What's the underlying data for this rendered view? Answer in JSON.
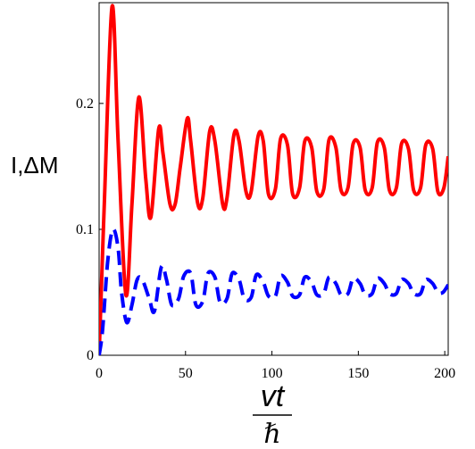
{
  "chart_data": {
    "type": "line",
    "title": "",
    "ylabel": "I,ΔM",
    "xlabel_numerator": "vt",
    "xlabel_denominator": "ℏ",
    "xlim": [
      0,
      202
    ],
    "ylim": [
      0,
      0.28
    ],
    "x_ticks": [
      0,
      50,
      100,
      150,
      200
    ],
    "x_tick_labels": [
      "0",
      "50",
      "100",
      "150",
      "200"
    ],
    "y_ticks": [
      0,
      0.1,
      0.2
    ],
    "y_tick_labels": [
      "0",
      "0.1",
      "0.2"
    ],
    "grid": false,
    "legend": "none",
    "series": [
      {
        "style": "solid",
        "color": "#ff0000",
        "x": [
          0,
          3,
          7.5,
          11,
          15.5,
          19,
          23,
          27,
          30,
          34.5,
          37,
          41,
          44,
          47,
          51,
          53,
          57,
          60,
          64,
          67,
          71.5,
          74,
          78,
          81,
          85,
          88,
          92,
          95,
          98,
          102,
          105,
          109,
          112,
          116,
          119,
          123,
          126,
          130,
          133,
          137,
          140,
          144,
          147,
          151,
          154,
          158,
          161,
          165,
          168,
          172,
          175,
          179,
          182,
          186,
          189,
          193,
          196,
          199.5,
          202
        ],
        "y": [
          0,
          0.12,
          0.277,
          0.17,
          0.048,
          0.12,
          0.205,
          0.14,
          0.11,
          0.18,
          0.16,
          0.12,
          0.12,
          0.15,
          0.188,
          0.17,
          0.121,
          0.125,
          0.178,
          0.17,
          0.12,
          0.125,
          0.175,
          0.17,
          0.13,
          0.13,
          0.174,
          0.17,
          0.128,
          0.132,
          0.172,
          0.167,
          0.128,
          0.133,
          0.17,
          0.165,
          0.13,
          0.132,
          0.171,
          0.165,
          0.131,
          0.133,
          0.168,
          0.165,
          0.131,
          0.133,
          0.169,
          0.165,
          0.131,
          0.133,
          0.168,
          0.164,
          0.131,
          0.133,
          0.167,
          0.164,
          0.13,
          0.133,
          0.158
        ]
      },
      {
        "style": "dashed",
        "color": "#0000ff",
        "x": [
          0,
          2,
          5,
          8,
          11,
          13,
          16,
          19,
          22,
          25,
          29,
          32,
          36,
          39,
          42,
          46,
          49,
          53,
          56,
          60,
          63,
          67,
          70,
          74,
          77,
          81,
          84,
          88,
          91,
          95,
          98,
          102,
          105,
          109,
          112,
          116,
          119,
          123,
          126,
          130,
          133,
          137,
          140,
          144,
          147,
          151,
          154,
          158,
          161,
          165,
          168,
          172,
          175,
          179,
          182,
          186,
          189,
          193,
          196,
          199,
          202
        ],
        "y": [
          0,
          0.02,
          0.075,
          0.1,
          0.085,
          0.05,
          0.026,
          0.04,
          0.06,
          0.06,
          0.045,
          0.035,
          0.07,
          0.06,
          0.04,
          0.045,
          0.063,
          0.065,
          0.04,
          0.043,
          0.065,
          0.062,
          0.042,
          0.045,
          0.065,
          0.06,
          0.045,
          0.046,
          0.064,
          0.058,
          0.047,
          0.047,
          0.063,
          0.058,
          0.047,
          0.048,
          0.062,
          0.058,
          0.048,
          0.049,
          0.062,
          0.057,
          0.048,
          0.049,
          0.061,
          0.057,
          0.048,
          0.049,
          0.061,
          0.057,
          0.049,
          0.049,
          0.06,
          0.057,
          0.049,
          0.049,
          0.06,
          0.057,
          0.05,
          0.05,
          0.056
        ]
      }
    ]
  }
}
